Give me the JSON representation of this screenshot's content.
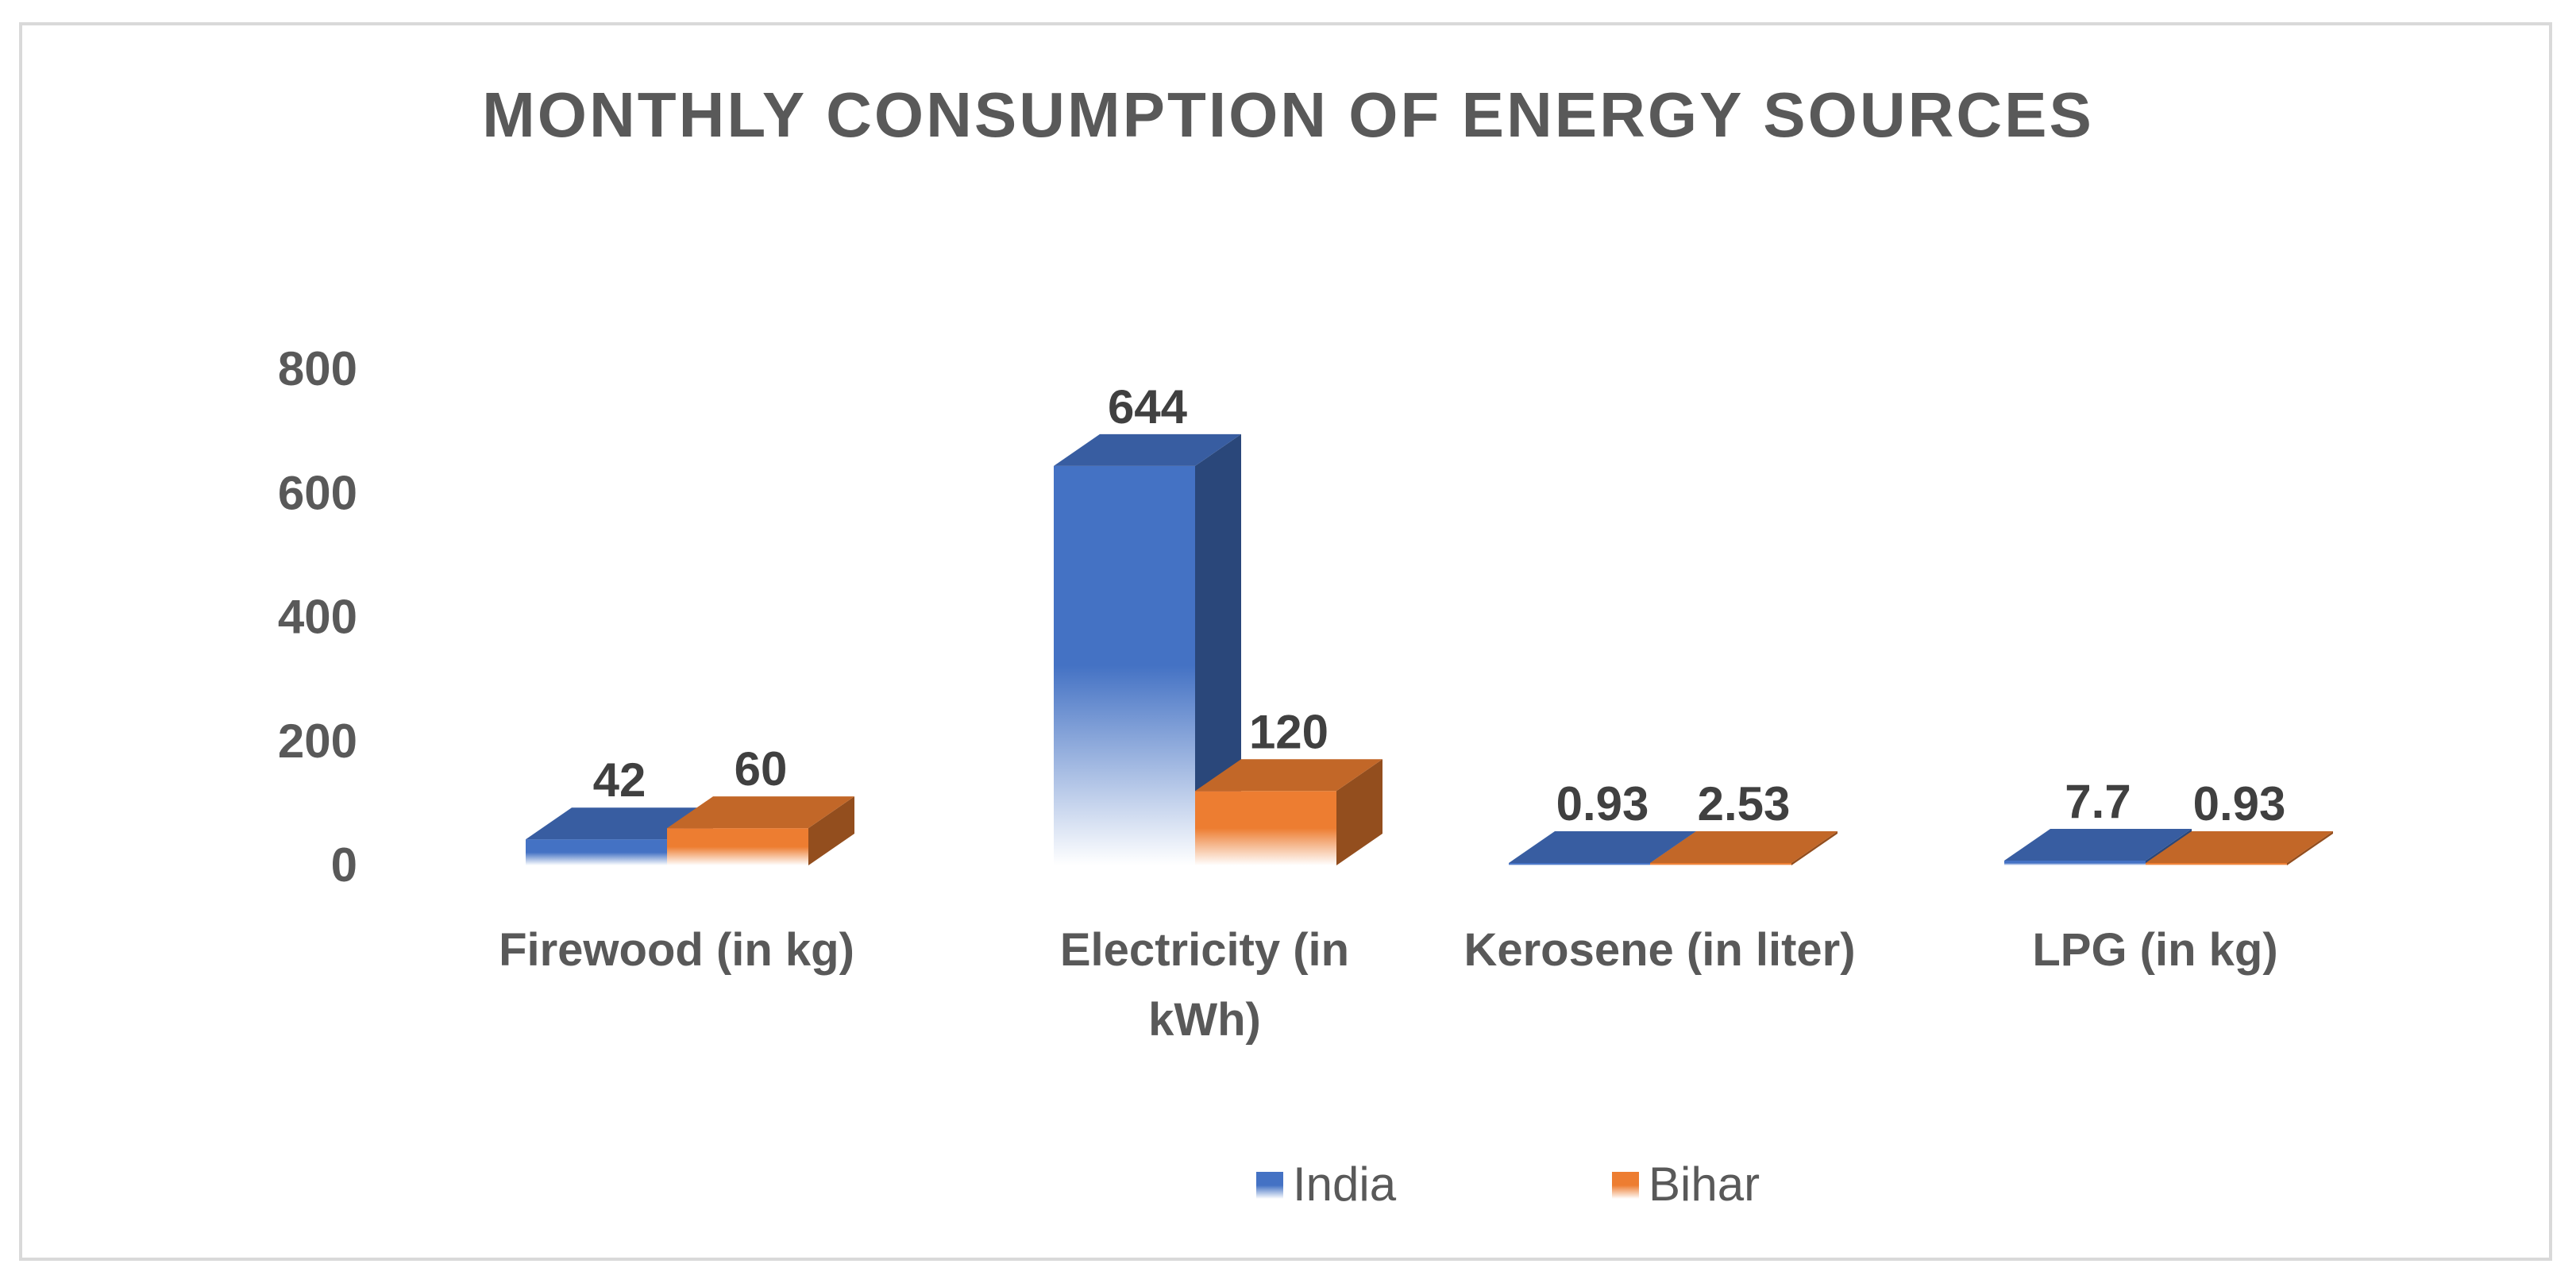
{
  "chart_data": {
    "type": "bar",
    "title": "MONTHLY CONSUMPTION OF ENERGY SOURCES",
    "categories": [
      "Firewood (in kg)",
      "Electricity (in kWh)",
      "Kerosene (in liter)",
      "LPG (in kg)"
    ],
    "category_lines": [
      [
        "Firewood (in kg)"
      ],
      [
        "Electricity (in",
        "kWh)"
      ],
      [
        "Kerosene (in liter)"
      ],
      [
        "LPG (in kg)"
      ]
    ],
    "series": [
      {
        "name": "India",
        "values": [
          42,
          644,
          0.93,
          7.7
        ],
        "labels": [
          "42",
          "644",
          "0.93",
          "7.7"
        ],
        "color": "#4472C4"
      },
      {
        "name": "Bihar",
        "values": [
          60,
          120,
          2.53,
          0.93
        ],
        "labels": [
          "60",
          "120",
          "2.53",
          "0.93"
        ],
        "color": "#ED7D31"
      }
    ],
    "yticks": [
      0,
      200,
      400,
      600,
      800
    ],
    "ytick_labels": [
      "0",
      "200",
      "400",
      "600",
      "800"
    ],
    "ylim": [
      0,
      800
    ],
    "xlabel": "",
    "ylabel": "",
    "legend_position": "bottom",
    "grid": false
  }
}
